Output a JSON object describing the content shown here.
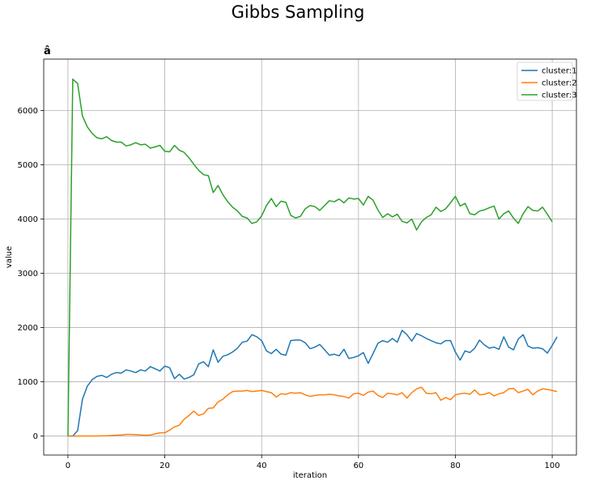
{
  "chart_data": {
    "type": "line",
    "suptitle": "Gibbs Sampling",
    "title": "â",
    "xlabel": "iteration",
    "ylabel": "value",
    "xlim": [
      -5,
      105
    ],
    "ylim": [
      -350,
      6950
    ],
    "xticks": [
      0,
      20,
      40,
      60,
      80,
      100
    ],
    "yticks": [
      0,
      1000,
      2000,
      3000,
      4000,
      5000,
      6000
    ],
    "grid": true,
    "legend_position": "top-right",
    "series": [
      {
        "name": "cluster:1",
        "color": "#1f77b4",
        "values": [
          0,
          0,
          100,
          680,
          920,
          1040,
          1100,
          1120,
          1080,
          1140,
          1170,
          1160,
          1220,
          1200,
          1170,
          1220,
          1200,
          1280,
          1240,
          1200,
          1290,
          1260,
          1060,
          1140,
          1050,
          1080,
          1130,
          1330,
          1370,
          1280,
          1590,
          1360,
          1470,
          1500,
          1550,
          1620,
          1730,
          1750,
          1870,
          1830,
          1760,
          1570,
          1520,
          1600,
          1510,
          1490,
          1760,
          1770,
          1770,
          1720,
          1610,
          1640,
          1690,
          1590,
          1490,
          1510,
          1480,
          1600,
          1430,
          1450,
          1480,
          1540,
          1340,
          1520,
          1710,
          1760,
          1730,
          1800,
          1730,
          1950,
          1870,
          1750,
          1890,
          1850,
          1800,
          1760,
          1720,
          1700,
          1760,
          1760,
          1550,
          1400,
          1570,
          1540,
          1620,
          1770,
          1680,
          1620,
          1640,
          1600,
          1830,
          1640,
          1590,
          1790,
          1870,
          1660,
          1620,
          1630,
          1610,
          1530,
          1670,
          1830
        ]
      },
      {
        "name": "cluster:2",
        "color": "#ff7f0e",
        "values": [
          0,
          0,
          0,
          0,
          0,
          0,
          0,
          5,
          5,
          10,
          15,
          20,
          30,
          30,
          25,
          20,
          15,
          20,
          40,
          60,
          60,
          110,
          170,
          200,
          310,
          380,
          460,
          380,
          410,
          510,
          520,
          630,
          680,
          760,
          820,
          830,
          830,
          840,
          820,
          830,
          840,
          820,
          800,
          720,
          780,
          770,
          800,
          790,
          800,
          760,
          730,
          750,
          760,
          760,
          770,
          760,
          740,
          730,
          700,
          780,
          790,
          750,
          810,
          830,
          750,
          710,
          790,
          780,
          760,
          800,
          700,
          800,
          870,
          900,
          790,
          780,
          800,
          660,
          710,
          670,
          760,
          780,
          790,
          770,
          850,
          760,
          770,
          800,
          740,
          780,
          800,
          870,
          880,
          800,
          830,
          860,
          760,
          830,
          870,
          860,
          840,
          820
        ]
      },
      {
        "name": "cluster:3",
        "color": "#2ca02c",
        "values": [
          0,
          6580,
          6500,
          5900,
          5700,
          5580,
          5500,
          5480,
          5520,
          5450,
          5420,
          5420,
          5350,
          5370,
          5410,
          5370,
          5380,
          5310,
          5330,
          5360,
          5250,
          5240,
          5360,
          5270,
          5230,
          5130,
          5010,
          4900,
          4820,
          4800,
          4490,
          4620,
          4450,
          4320,
          4220,
          4150,
          4050,
          4020,
          3920,
          3950,
          4060,
          4250,
          4380,
          4230,
          4330,
          4310,
          4070,
          4020,
          4050,
          4190,
          4250,
          4230,
          4160,
          4250,
          4340,
          4320,
          4370,
          4300,
          4390,
          4370,
          4380,
          4260,
          4420,
          4350,
          4170,
          4030,
          4100,
          4040,
          4090,
          3960,
          3930,
          4000,
          3800,
          3950,
          4030,
          4080,
          4220,
          4140,
          4190,
          4300,
          4420,
          4240,
          4290,
          4100,
          4080,
          4150,
          4170,
          4210,
          4240,
          4000,
          4100,
          4150,
          4020,
          3920,
          4100,
          4230,
          4160,
          4150,
          4220,
          4090,
          3950
        ]
      }
    ]
  }
}
